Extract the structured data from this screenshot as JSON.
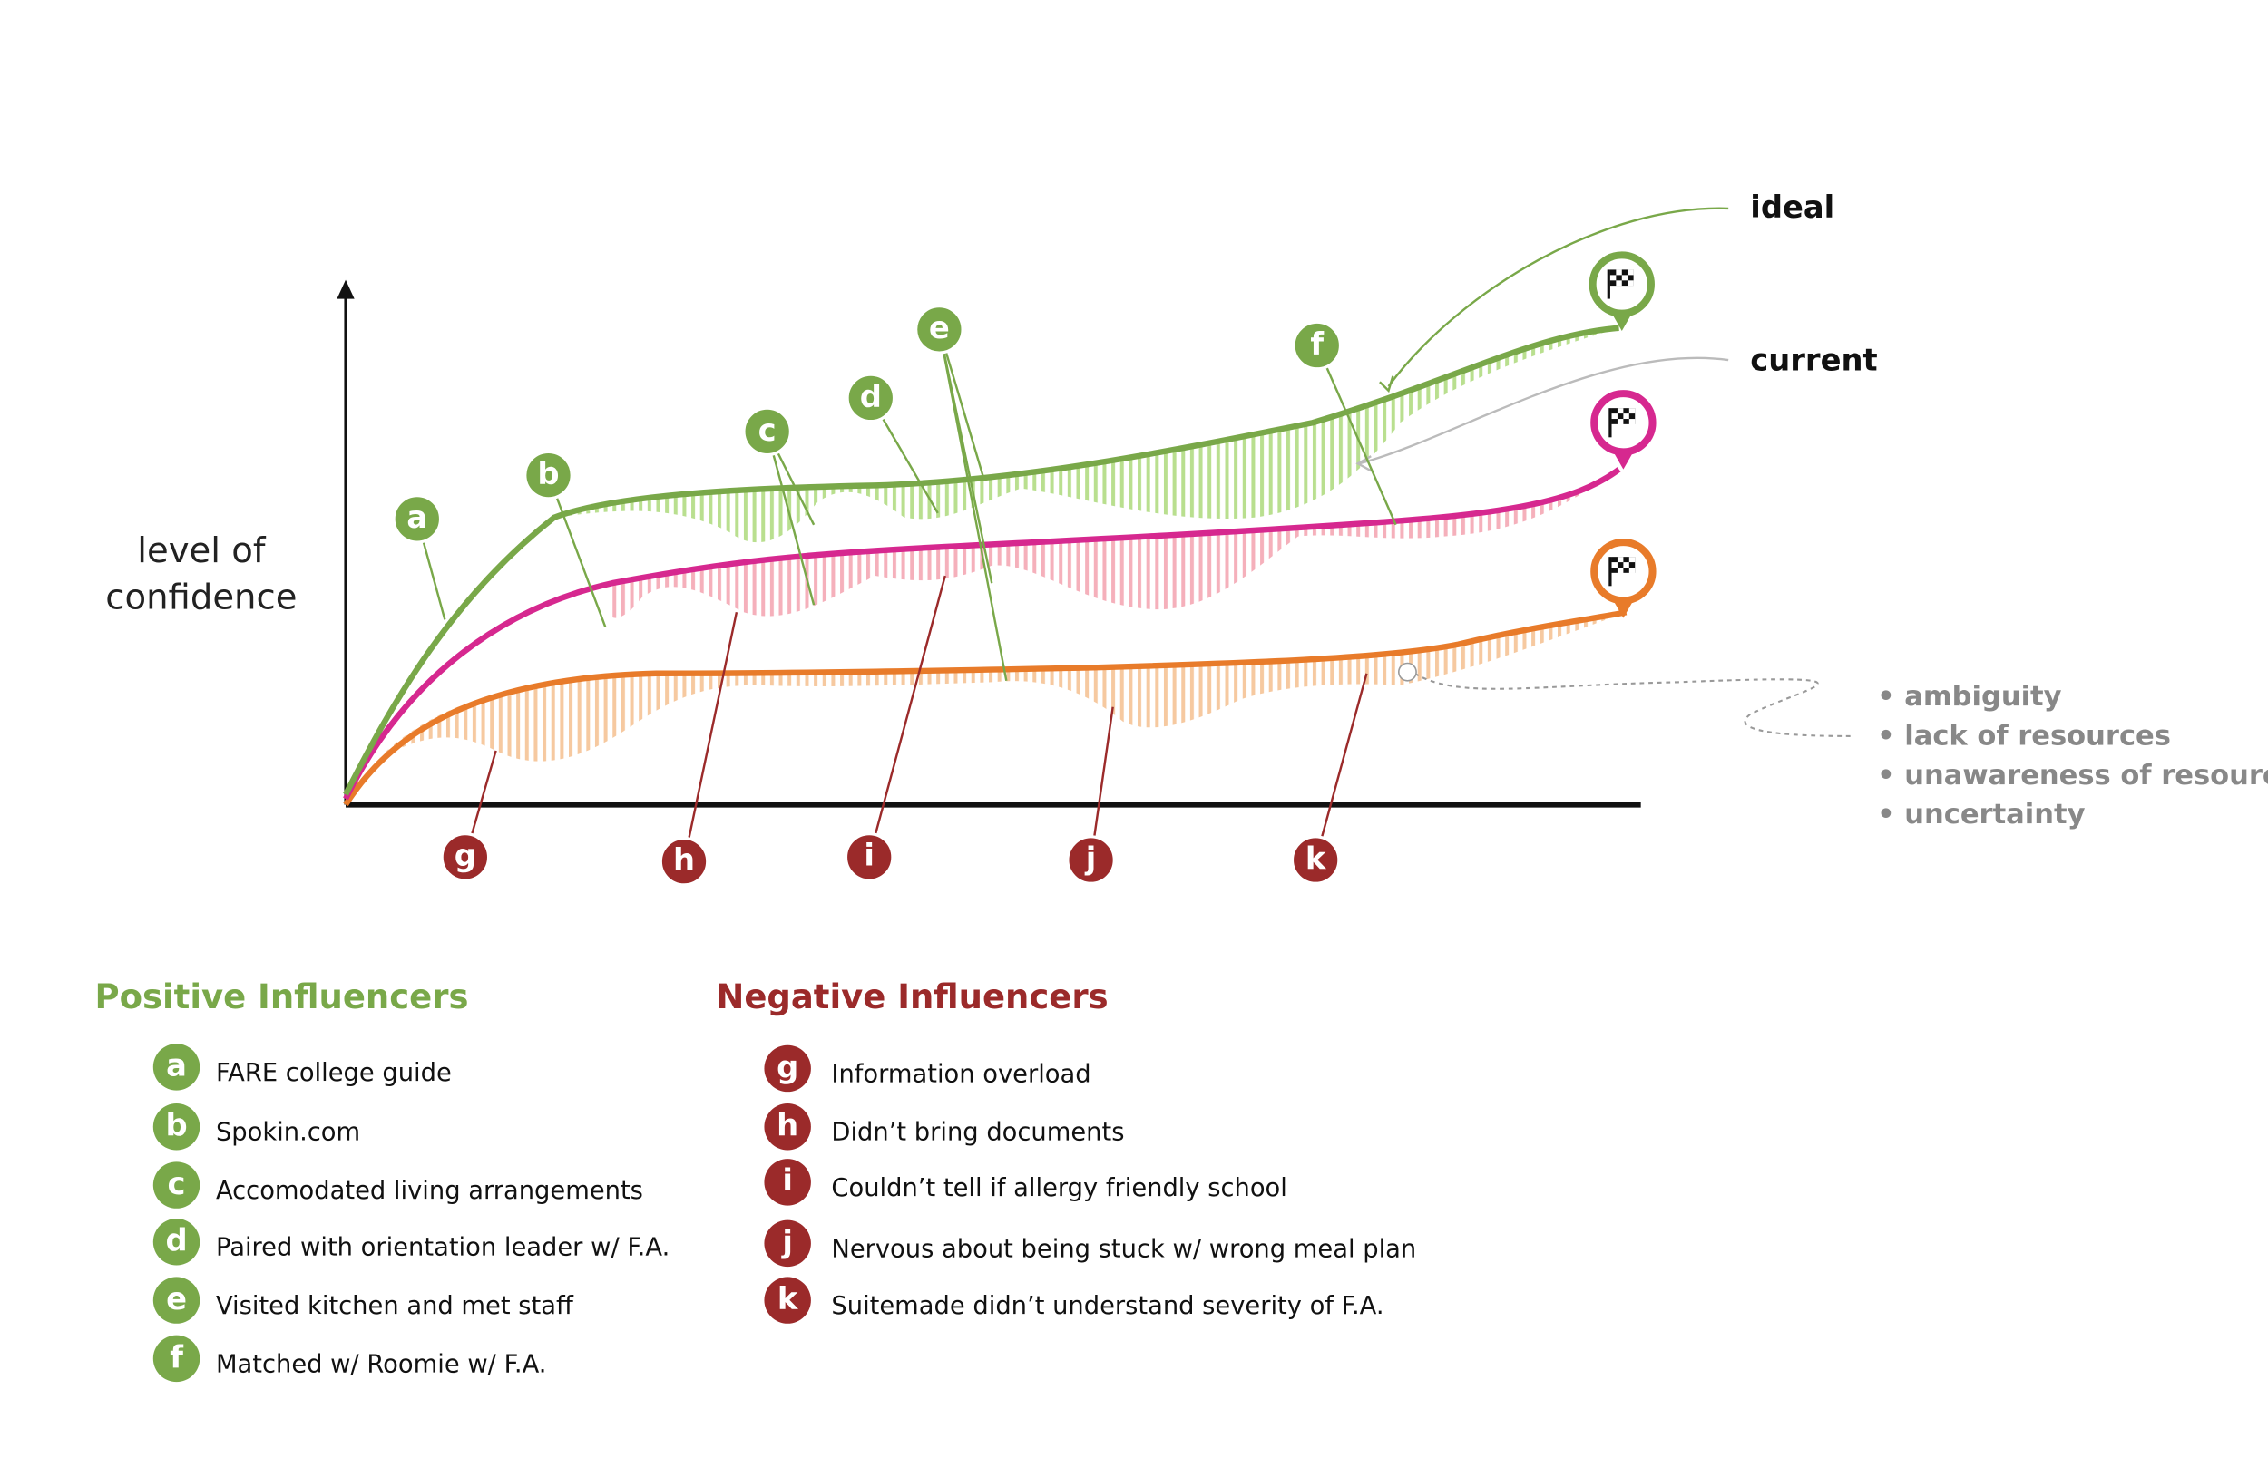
{
  "y_axis_label": [
    "level of",
    "confidence"
  ],
  "line_labels": [
    "ideal",
    "current"
  ],
  "positive": {
    "title": "Positive Influencers",
    "items": [
      {
        "letter": "a",
        "text": "FARE college guide"
      },
      {
        "letter": "b",
        "text": "Spokin.com"
      },
      {
        "letter": "c",
        "text": "Accomodated living arrangements"
      },
      {
        "letter": "d",
        "text": "Paired with orientation leader w/ F.A."
      },
      {
        "letter": "e",
        "text": "Visited kitchen and met staff"
      },
      {
        "letter": "f",
        "text": "Matched w/ Roomie w/ F.A."
      }
    ]
  },
  "negative": {
    "title": "Negative Influencers",
    "items": [
      {
        "letter": "g",
        "text": "Information overload"
      },
      {
        "letter": "h",
        "text": "Didn’t bring documents"
      },
      {
        "letter": "i",
        "text": "Couldn’t tell if allergy friendly school"
      },
      {
        "letter": "j",
        "text": "Nervous about being stuck w/ wrong meal plan"
      },
      {
        "letter": "k",
        "text": "Suitemade didn’t understand severity of F.A."
      }
    ]
  },
  "bullets": [
    "• ambiguity",
    "• lack of resources",
    "• unawareness of resources",
    "• uncertainty"
  ]
}
